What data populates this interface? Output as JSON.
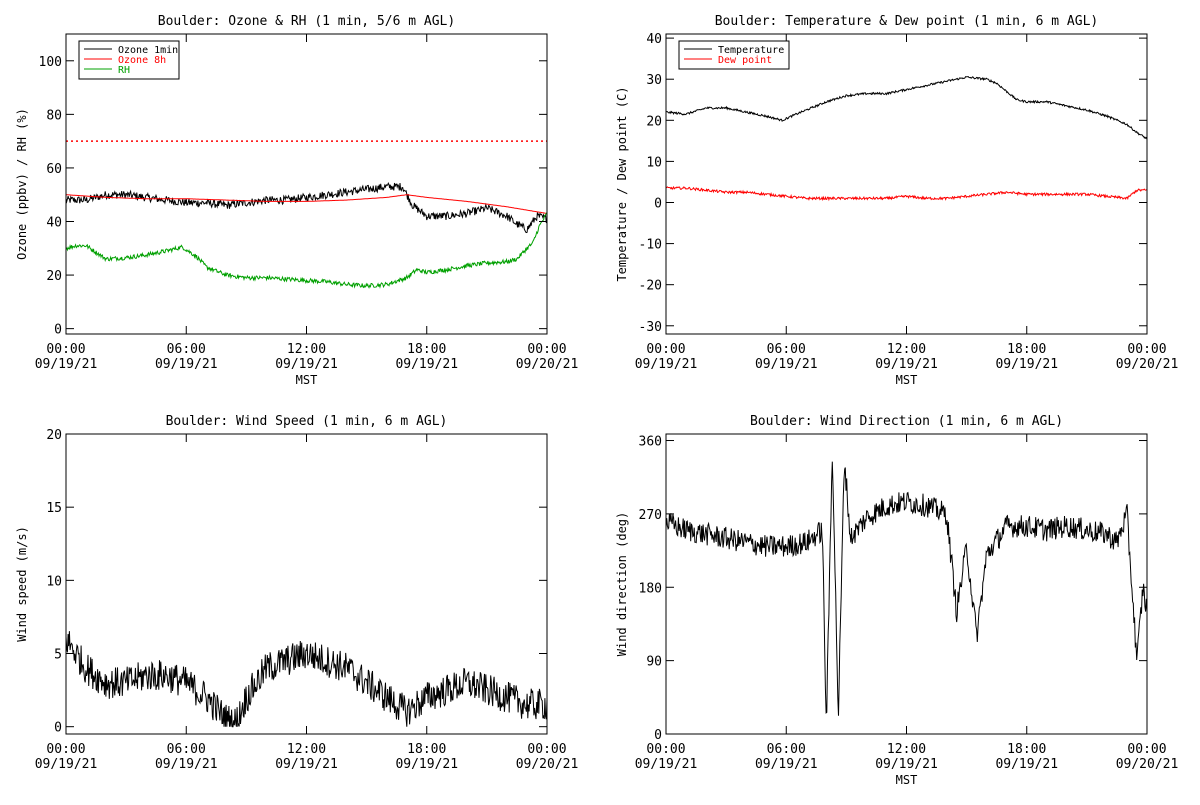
{
  "chart_data": [
    {
      "type": "line",
      "title": "Boulder: Ozone & RH (1 min, 5/6 m AGL)",
      "xlabel": "MST",
      "ylabel": "Ozone (ppbv) / RH (%)",
      "x_ticks": [
        {
          "time": "00:00",
          "date": "09/19/21"
        },
        {
          "time": "06:00",
          "date": "09/19/21"
        },
        {
          "time": "12:00",
          "date": "09/19/21"
        },
        {
          "time": "18:00",
          "date": "09/19/21"
        },
        {
          "time": "00:00",
          "date": "09/20/21"
        }
      ],
      "xlim": [
        0,
        24
      ],
      "ylim": [
        -2,
        110
      ],
      "y_ticks": [
        "0",
        "20",
        "40",
        "60",
        "80",
        "100"
      ],
      "legend": "top-left",
      "series": [
        {
          "name": "Ozone 1min",
          "color": "#000000",
          "noise": 1.5,
          "x": [
            0,
            1,
            2,
            3,
            4,
            5,
            6,
            7,
            8,
            9,
            10,
            11,
            12,
            13,
            14,
            15,
            16,
            16.8,
            17.3,
            18,
            19,
            20,
            21,
            22,
            22.5,
            23,
            23.5,
            24
          ],
          "y": [
            48,
            48,
            50,
            50,
            49,
            48,
            47,
            47,
            46,
            47,
            48,
            48,
            49,
            50,
            51,
            52,
            53,
            53,
            46,
            42,
            42,
            43,
            45,
            42,
            39,
            37,
            42,
            41
          ]
        },
        {
          "name": "Ozone 8h",
          "color": "#ff0000",
          "noise": 0,
          "x": [
            0,
            2,
            4,
            6,
            8,
            10,
            12,
            14,
            16,
            17,
            18,
            20,
            22,
            24
          ],
          "y": [
            50,
            49,
            48.5,
            48.5,
            48,
            47.5,
            47.5,
            48,
            49,
            50,
            49,
            47.5,
            45.5,
            43
          ]
        },
        {
          "name": "RH",
          "color": "#00a000",
          "noise": 0.8,
          "x": [
            0,
            0.5,
            1,
            2,
            3,
            4,
            5,
            5.8,
            6.5,
            7,
            8,
            9,
            10,
            11,
            12,
            13,
            14,
            15,
            16,
            17,
            17.5,
            18,
            19,
            20,
            21,
            22,
            22.5,
            23,
            23.3,
            23.6,
            24
          ],
          "y": [
            30,
            31,
            31,
            26,
            26.5,
            27.5,
            29,
            30.5,
            27,
            23,
            20,
            19,
            19,
            18.5,
            18,
            17.5,
            16.5,
            16,
            16.5,
            19,
            22,
            21,
            22,
            23.5,
            24.5,
            25,
            26,
            30,
            32,
            38,
            43
          ]
        }
      ],
      "reference_lines": [
        {
          "y": 70,
          "color": "#ff0000",
          "style": "dotted"
        }
      ]
    },
    {
      "type": "line",
      "title": "Boulder: Temperature & Dew point (1 min, 6 m AGL)",
      "xlabel": "MST",
      "ylabel": "Temperature / Dew point (C)",
      "x_ticks": [
        {
          "time": "00:00",
          "date": "09/19/21"
        },
        {
          "time": "06:00",
          "date": "09/19/21"
        },
        {
          "time": "12:00",
          "date": "09/19/21"
        },
        {
          "time": "18:00",
          "date": "09/19/21"
        },
        {
          "time": "00:00",
          "date": "09/20/21"
        }
      ],
      "xlim": [
        0,
        24
      ],
      "ylim": [
        -32,
        41
      ],
      "y_ticks": [
        "-30",
        "-20",
        "-10",
        "0",
        "10",
        "20",
        "30",
        "40"
      ],
      "legend": "top-left",
      "series": [
        {
          "name": "Temperature",
          "color": "#000000",
          "noise": 0.25,
          "x": [
            0,
            1,
            2,
            3,
            4,
            5,
            5.8,
            6.5,
            7,
            8,
            9,
            10,
            11,
            12,
            13,
            14,
            15,
            16,
            16.5,
            17,
            17.5,
            18,
            19,
            20,
            21,
            22,
            23,
            23.5,
            24
          ],
          "y": [
            22,
            21.5,
            23,
            23,
            22,
            21,
            20,
            21.5,
            22.5,
            24.5,
            26,
            26.5,
            26.5,
            27.5,
            28.5,
            29.5,
            30.5,
            30,
            29,
            27,
            25,
            24.5,
            24.5,
            23.5,
            22.5,
            21,
            19,
            17,
            15.5
          ]
        },
        {
          "name": "Dew point",
          "color": "#ff0000",
          "noise": 0.3,
          "x": [
            0,
            1,
            2,
            3,
            4,
            5,
            6,
            7,
            8,
            9,
            10,
            11,
            12,
            13,
            14,
            15,
            16,
            17,
            18,
            19,
            20,
            21,
            22,
            23,
            23.5,
            24
          ],
          "y": [
            3.5,
            3.5,
            3,
            2.5,
            2.5,
            2,
            1.5,
            1,
            1,
            1,
            1,
            1,
            1.5,
            1,
            1,
            1.5,
            2,
            2.5,
            2,
            2,
            2,
            2,
            1.5,
            1,
            3,
            3
          ]
        }
      ],
      "reference_lines": []
    },
    {
      "type": "line",
      "title": "Boulder: Wind Speed (1 min, 6 m AGL)",
      "xlabel": "",
      "ylabel": "Wind speed (m/s)",
      "x_ticks": [
        {
          "time": "00:00",
          "date": "09/19/21"
        },
        {
          "time": "06:00",
          "date": "09/19/21"
        },
        {
          "time": "12:00",
          "date": "09/19/21"
        },
        {
          "time": "18:00",
          "date": "09/19/21"
        },
        {
          "time": "00:00",
          "date": "09/20/21"
        }
      ],
      "xlim": [
        0,
        24
      ],
      "ylim": [
        -0.5,
        20
      ],
      "y_ticks": [
        "0",
        "5",
        "10",
        "15",
        "20"
      ],
      "legend": "",
      "series": [
        {
          "name": "",
          "color": "#000000",
          "noise": 1.1,
          "floor": 0,
          "x": [
            0,
            0.5,
            1,
            2,
            3,
            4,
            5,
            6,
            7,
            8,
            8.5,
            9,
            10,
            11,
            12,
            13,
            14,
            15,
            16,
            17,
            18,
            19,
            20,
            21,
            22,
            23,
            24
          ],
          "y": [
            6,
            5,
            4,
            3,
            3,
            3.5,
            3.5,
            3,
            2,
            0.5,
            0.3,
            2,
            4,
            4.5,
            5,
            4.5,
            4,
            3,
            2,
            1,
            2,
            2.5,
            3,
            2.5,
            2,
            1.5,
            1.5
          ]
        }
      ],
      "reference_lines": []
    },
    {
      "type": "line",
      "title": "Boulder: Wind Direction (1 min, 6 m AGL)",
      "xlabel": "MST",
      "ylabel": "Wind direction (deg)",
      "x_ticks": [
        {
          "time": "00:00",
          "date": "09/19/21"
        },
        {
          "time": "06:00",
          "date": "09/19/21"
        },
        {
          "time": "12:00",
          "date": "09/19/21"
        },
        {
          "time": "18:00",
          "date": "09/19/21"
        },
        {
          "time": "00:00",
          "date": "09/20/21"
        }
      ],
      "xlim": [
        0,
        24
      ],
      "ylim": [
        0,
        368
      ],
      "y_ticks": [
        "0",
        "90",
        "180",
        "270",
        "360"
      ],
      "legend": "",
      "series": [
        {
          "name": "",
          "color": "#000000",
          "noise": 14,
          "floor": 0,
          "ceil": 360,
          "x": [
            0,
            1,
            2,
            3,
            4,
            5,
            6,
            7,
            7.8,
            8.0,
            8.3,
            8.6,
            8.9,
            9.2,
            10,
            11,
            12,
            13,
            14,
            14.5,
            15,
            15.5,
            16,
            17,
            18,
            19,
            20,
            21,
            22,
            22.5,
            23,
            23.5,
            23.8,
            24
          ],
          "y": [
            260,
            250,
            245,
            240,
            235,
            230,
            230,
            235,
            250,
            10,
            350,
            20,
            340,
            240,
            265,
            280,
            285,
            280,
            270,
            150,
            230,
            120,
            220,
            255,
            255,
            250,
            255,
            250,
            245,
            235,
            270,
            90,
            180,
            150
          ]
        }
      ],
      "reference_lines": []
    }
  ]
}
